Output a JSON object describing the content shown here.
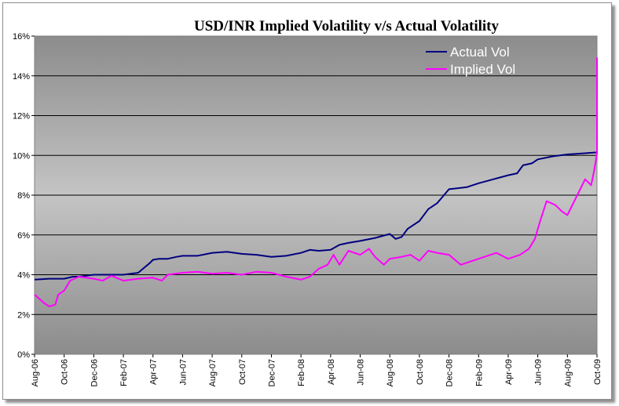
{
  "chart_data": {
    "type": "line",
    "title": "USD/INR Implied Volatility v/s Actual Volatility",
    "xlabel": "",
    "ylabel": "",
    "ylim": [
      0,
      16
    ],
    "y_ticks": [
      "0%",
      "2%",
      "4%",
      "6%",
      "8%",
      "10%",
      "12%",
      "14%",
      "16%"
    ],
    "x_ticks": [
      "Aug-06",
      "Oct-06",
      "Dec-06",
      "Feb-07",
      "Apr-07",
      "Jun-07",
      "Aug-07",
      "Oct-07",
      "Dec-07",
      "Feb-08",
      "Apr-08",
      "Jun-08",
      "Aug-08",
      "Oct-08",
      "Dec-08",
      "Feb-09",
      "Apr-09",
      "Jun-09",
      "Aug-09",
      "Oct-09"
    ],
    "x_range_months": [
      "Aug-06",
      "Oct-09"
    ],
    "grid": "horizontal",
    "legend_position": "top-right",
    "background": "gray-gradient",
    "series": [
      {
        "name": "Actual Vol",
        "color": "#000080",
        "x": [
          0,
          0.5,
          1.0,
          1.3,
          1.5,
          2.0,
          2.5,
          3.0,
          3.5,
          3.9,
          4.0,
          4.2,
          4.5,
          4.8,
          5.0,
          5.5,
          6.0,
          6.5,
          7.0,
          7.5,
          8.0,
          8.5,
          9.0,
          9.3,
          9.6,
          10.0,
          10.3,
          10.6,
          11.0,
          11.5,
          12.0,
          12.2,
          12.4,
          12.6,
          13.0,
          13.3,
          13.6,
          14.0,
          14.3,
          14.6,
          15.0,
          15.5,
          16.0,
          16.3,
          16.5,
          16.8,
          17.0,
          17.5,
          18.0,
          18.5,
          19.0,
          19.4
        ],
        "values": [
          3.75,
          3.8,
          3.8,
          3.9,
          3.9,
          4.0,
          4.0,
          4.0,
          4.1,
          4.6,
          4.75,
          4.8,
          4.8,
          4.9,
          4.95,
          4.95,
          5.1,
          5.15,
          5.05,
          5.0,
          4.9,
          4.95,
          5.1,
          5.25,
          5.2,
          5.25,
          5.5,
          5.6,
          5.7,
          5.85,
          6.05,
          5.8,
          5.9,
          6.3,
          6.7,
          7.3,
          7.6,
          8.3,
          8.35,
          8.4,
          8.6,
          8.8,
          9.0,
          9.1,
          9.5,
          9.6,
          9.8,
          9.95,
          10.05,
          10.1,
          10.15,
          10.2
        ]
      },
      {
        "name": "Implied Vol",
        "color": "#ff00ff",
        "x": [
          0,
          0.15,
          0.3,
          0.5,
          0.7,
          0.8,
          1.0,
          1.2,
          1.5,
          2.0,
          2.3,
          2.6,
          3.0,
          3.5,
          4.0,
          4.3,
          4.5,
          5.0,
          5.5,
          6.0,
          6.5,
          7.0,
          7.5,
          8.0,
          8.5,
          9.0,
          9.3,
          9.6,
          9.9,
          10.1,
          10.3,
          10.6,
          11.0,
          11.3,
          11.5,
          11.8,
          12.0,
          12.4,
          12.7,
          13.0,
          13.3,
          13.6,
          14.0,
          14.4,
          14.8,
          15.2,
          15.6,
          16.0,
          16.4,
          16.7,
          16.9,
          17.1,
          17.3,
          17.6,
          17.8,
          18.0,
          18.3,
          18.6,
          18.8,
          18.9,
          19.0,
          19.05,
          19.1,
          19.2,
          19.3,
          19.4
        ],
        "values": [
          3.0,
          2.8,
          2.6,
          2.4,
          2.5,
          3.0,
          3.2,
          3.7,
          3.9,
          3.8,
          3.7,
          3.95,
          3.7,
          3.8,
          3.85,
          3.7,
          4.0,
          4.1,
          4.15,
          4.05,
          4.1,
          4.0,
          4.15,
          4.1,
          3.9,
          3.75,
          3.9,
          4.3,
          4.5,
          5.0,
          4.5,
          5.2,
          5.0,
          5.3,
          4.9,
          4.5,
          4.8,
          4.9,
          5.0,
          4.7,
          5.2,
          5.1,
          5.0,
          4.5,
          4.7,
          4.9,
          5.1,
          4.8,
          5.0,
          5.3,
          5.8,
          6.8,
          7.7,
          7.5,
          7.2,
          7.0,
          7.9,
          8.8,
          8.5,
          9.2,
          10.1,
          12.5,
          14.9,
          12.3,
          12.9,
          13.6
        ]
      }
    ]
  }
}
